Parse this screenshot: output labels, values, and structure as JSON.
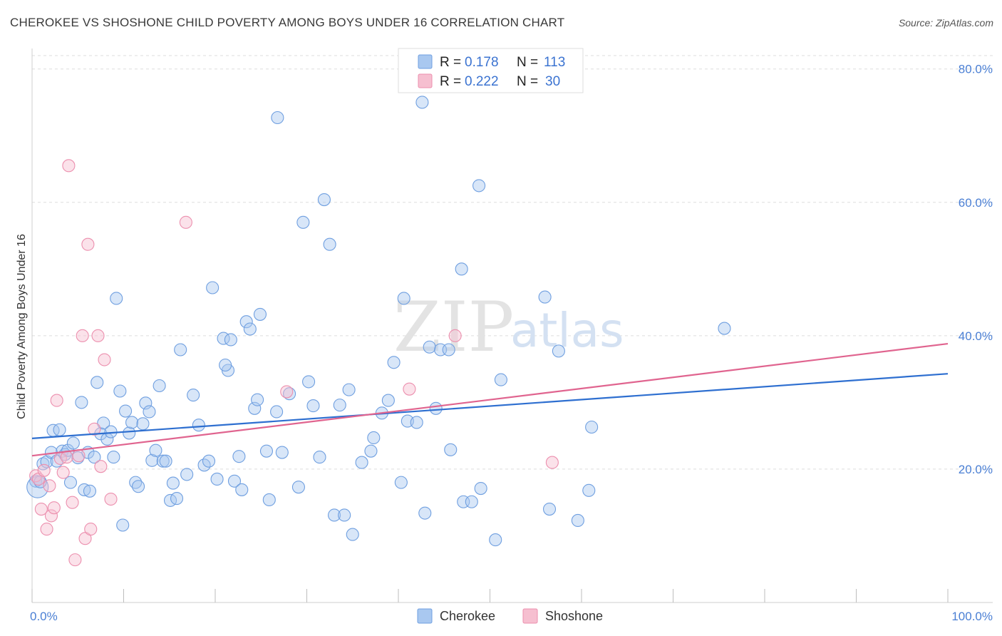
{
  "title": "CHEROKEE VS SHOSHONE CHILD POVERTY AMONG BOYS UNDER 16 CORRELATION CHART",
  "source": "Source: ZipAtlas.com",
  "watermark": {
    "zip": "ZIP",
    "atlas": "atlas"
  },
  "colors": {
    "cherokee_fill": "#a9c8f0",
    "cherokee_stroke": "#6f9fe0",
    "cherokee_line": "#2e6fd0",
    "shoshone_fill": "#f6bfd0",
    "shoshone_stroke": "#ec8fae",
    "shoshone_line": "#e0648f",
    "tick_text": "#4a7fd4",
    "grid": "#dddddd"
  },
  "legend": {
    "rows": [
      {
        "r_label": "R =",
        "r_value": "0.178",
        "n_label": "N =",
        "n_value": "113"
      },
      {
        "r_label": "R =",
        "r_value": "0.222",
        "n_label": "N =",
        "n_value": "30"
      }
    ]
  },
  "chart_data": {
    "type": "scatter",
    "title": "CHEROKEE VS SHOSHONE CHILD POVERTY AMONG BOYS UNDER 16 CORRELATION CHART",
    "xlabel": "",
    "ylabel": "Child Poverty Among Boys Under 16",
    "xlim": [
      0,
      100
    ],
    "ylim": [
      0,
      82
    ],
    "x_tick_labels": [
      "0.0%",
      "100.0%"
    ],
    "y_ticks": [
      20,
      40,
      60,
      80
    ],
    "y_tick_labels": [
      "20.0%",
      "40.0%",
      "60.0%",
      "80.0%"
    ],
    "grid": true,
    "legend_position": "bottom-center",
    "series": [
      {
        "name": "Cherokee",
        "r": 0.178,
        "n": 113,
        "trend": [
          [
            0,
            24.6
          ],
          [
            100,
            34.3
          ]
        ],
        "points": [
          [
            0.4,
            18.2
          ],
          [
            0.6,
            17.3
          ],
          [
            0.9,
            18.1
          ],
          [
            1.2,
            20.8
          ],
          [
            1.6,
            21.1
          ],
          [
            2.1,
            22.5
          ],
          [
            2.3,
            25.8
          ],
          [
            2.7,
            21.2
          ],
          [
            3.0,
            25.9
          ],
          [
            3.3,
            22.7
          ],
          [
            3.6,
            22.2
          ],
          [
            3.9,
            22.8
          ],
          [
            4.2,
            18.0
          ],
          [
            4.5,
            23.9
          ],
          [
            5.0,
            21.7
          ],
          [
            5.4,
            30.0
          ],
          [
            5.7,
            16.9
          ],
          [
            6.1,
            22.5
          ],
          [
            6.3,
            16.7
          ],
          [
            6.8,
            21.8
          ],
          [
            7.1,
            33.0
          ],
          [
            7.5,
            25.3
          ],
          [
            7.8,
            26.9
          ],
          [
            8.2,
            24.5
          ],
          [
            8.6,
            25.6
          ],
          [
            8.9,
            21.8
          ],
          [
            9.2,
            45.6
          ],
          [
            9.6,
            31.7
          ],
          [
            9.9,
            11.6
          ],
          [
            10.2,
            28.7
          ],
          [
            10.6,
            25.4
          ],
          [
            10.9,
            27.0
          ],
          [
            11.3,
            18.0
          ],
          [
            11.6,
            17.4
          ],
          [
            12.1,
            26.8
          ],
          [
            12.4,
            29.9
          ],
          [
            12.8,
            28.6
          ],
          [
            13.1,
            21.3
          ],
          [
            13.5,
            22.8
          ],
          [
            13.9,
            32.5
          ],
          [
            14.3,
            21.2
          ],
          [
            14.6,
            21.2
          ],
          [
            15.1,
            15.3
          ],
          [
            15.4,
            17.9
          ],
          [
            15.8,
            15.6
          ],
          [
            16.2,
            37.9
          ],
          [
            16.9,
            19.2
          ],
          [
            17.6,
            31.1
          ],
          [
            18.2,
            26.6
          ],
          [
            18.8,
            20.6
          ],
          [
            19.3,
            21.2
          ],
          [
            19.7,
            47.2
          ],
          [
            20.2,
            18.5
          ],
          [
            20.9,
            39.6
          ],
          [
            21.4,
            34.8
          ],
          [
            21.7,
            39.4
          ],
          [
            21.1,
            35.6
          ],
          [
            22.1,
            18.2
          ],
          [
            22.6,
            21.9
          ],
          [
            22.9,
            16.9
          ],
          [
            23.4,
            42.1
          ],
          [
            23.8,
            41.0
          ],
          [
            24.3,
            29.1
          ],
          [
            24.6,
            30.4
          ],
          [
            24.9,
            43.2
          ],
          [
            25.6,
            22.7
          ],
          [
            25.9,
            15.4
          ],
          [
            26.7,
            28.6
          ],
          [
            27.3,
            22.5
          ],
          [
            26.8,
            72.7
          ],
          [
            28.1,
            31.3
          ],
          [
            29.1,
            17.3
          ],
          [
            29.6,
            57.0
          ],
          [
            30.2,
            33.1
          ],
          [
            30.7,
            29.5
          ],
          [
            31.4,
            21.8
          ],
          [
            31.9,
            60.4
          ],
          [
            32.5,
            53.7
          ],
          [
            33.0,
            13.1
          ],
          [
            33.6,
            29.6
          ],
          [
            34.1,
            13.1
          ],
          [
            34.6,
            31.9
          ],
          [
            35.0,
            10.2
          ],
          [
            36.0,
            21.0
          ],
          [
            37.0,
            22.7
          ],
          [
            37.3,
            24.7
          ],
          [
            38.2,
            28.4
          ],
          [
            38.9,
            30.3
          ],
          [
            39.5,
            36.0
          ],
          [
            40.3,
            18.0
          ],
          [
            40.6,
            45.6
          ],
          [
            41.0,
            27.2
          ],
          [
            42.0,
            27.0
          ],
          [
            42.6,
            75.0
          ],
          [
            42.9,
            13.4
          ],
          [
            43.4,
            38.3
          ],
          [
            44.1,
            29.1
          ],
          [
            44.6,
            37.9
          ],
          [
            45.7,
            22.9
          ],
          [
            45.5,
            37.9
          ],
          [
            46.9,
            50.0
          ],
          [
            47.1,
            15.1
          ],
          [
            48.0,
            15.1
          ],
          [
            48.8,
            62.5
          ],
          [
            49.0,
            17.1
          ],
          [
            50.6,
            9.4
          ],
          [
            51.2,
            33.4
          ],
          [
            56.0,
            45.8
          ],
          [
            56.5,
            14.0
          ],
          [
            57.5,
            37.7
          ],
          [
            59.6,
            12.3
          ],
          [
            60.8,
            16.8
          ],
          [
            61.1,
            26.3
          ],
          [
            75.6,
            41.1
          ]
        ]
      },
      {
        "name": "Shoshone",
        "r": 0.222,
        "n": 30,
        "trend": [
          [
            0,
            22.0
          ],
          [
            100,
            38.8
          ]
        ],
        "points": [
          [
            0.4,
            19.0
          ],
          [
            0.7,
            18.5
          ],
          [
            1.0,
            14.0
          ],
          [
            1.3,
            19.8
          ],
          [
            1.6,
            11.0
          ],
          [
            1.9,
            17.5
          ],
          [
            2.1,
            13.0
          ],
          [
            2.4,
            14.2
          ],
          [
            2.7,
            30.3
          ],
          [
            3.1,
            21.6
          ],
          [
            3.4,
            19.5
          ],
          [
            3.8,
            21.8
          ],
          [
            4.0,
            65.5
          ],
          [
            4.4,
            15.0
          ],
          [
            4.7,
            6.4
          ],
          [
            5.1,
            22.0
          ],
          [
            5.5,
            40.0
          ],
          [
            5.8,
            9.6
          ],
          [
            6.1,
            53.7
          ],
          [
            6.4,
            11.0
          ],
          [
            6.8,
            26.0
          ],
          [
            7.2,
            40.0
          ],
          [
            7.5,
            20.4
          ],
          [
            7.9,
            36.4
          ],
          [
            8.6,
            15.5
          ],
          [
            16.8,
            57.0
          ],
          [
            27.8,
            31.6
          ],
          [
            41.2,
            32.0
          ],
          [
            46.2,
            40.0
          ],
          [
            56.8,
            21.0
          ]
        ]
      }
    ]
  },
  "bottom_legend": [
    {
      "label": "Cherokee"
    },
    {
      "label": "Shoshone"
    }
  ]
}
